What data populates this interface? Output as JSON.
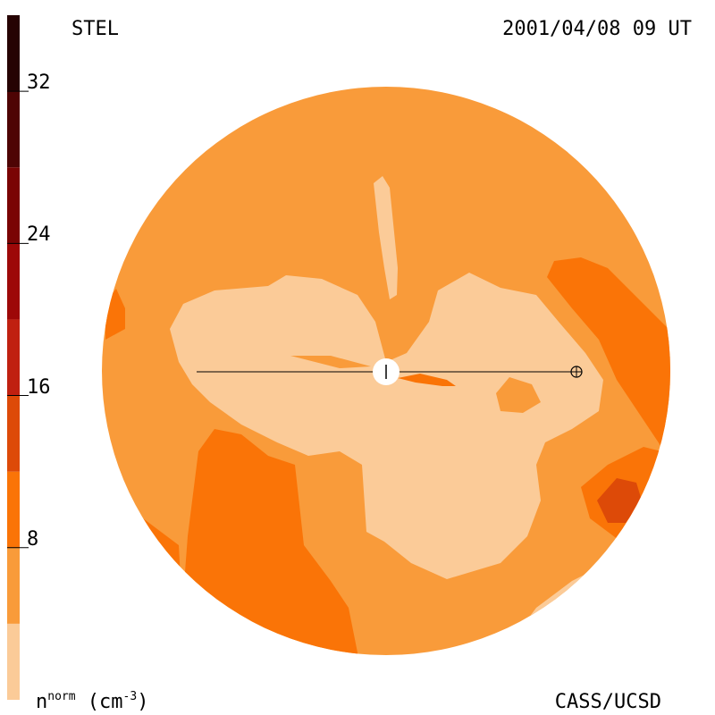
{
  "header": {
    "left_label": "STEL",
    "right_label": "2001/04/08 09 UT"
  },
  "footer": {
    "credit": "CASS/UCSD",
    "unit_symbol": "n",
    "unit_superscript": "norm",
    "unit_open": " (cm",
    "unit_exponent": "-3",
    "unit_close": ")"
  },
  "chart_data": {
    "type": "heatmap",
    "title": "STEL",
    "timestamp": "2001/04/08 09 UT",
    "colorbar": {
      "label": "n^norm (cm^-3)",
      "range": [
        0,
        36
      ],
      "ticks": [
        8,
        16,
        24,
        32
      ],
      "tick_labels": [
        "8",
        "16",
        "24",
        "32"
      ],
      "bins": [
        {
          "from": 0,
          "to": 4,
          "color": "#fbcb98"
        },
        {
          "from": 4,
          "to": 8,
          "color": "#f99b3a"
        },
        {
          "from": 8,
          "to": 12,
          "color": "#fa7407"
        },
        {
          "from": 12,
          "to": 16,
          "color": "#dd4a08"
        },
        {
          "from": 16,
          "to": 20,
          "color": "#c02010"
        },
        {
          "from": 20,
          "to": 24,
          "color": "#9d0808"
        },
        {
          "from": 24,
          "to": 28,
          "color": "#7a0404"
        },
        {
          "from": 28,
          "to": 32,
          "color": "#4e0404"
        },
        {
          "from": 32,
          "to": 36,
          "color": "#260303"
        }
      ]
    },
    "colors": {
      "background_level": "#f99b3a",
      "low_level": "#fbcb98",
      "mid_level": "#fa7407",
      "high_level": "#dd4a08",
      "sun": "#ffffff",
      "line": "#000000"
    },
    "markers": [
      "sun",
      "earth"
    ]
  }
}
